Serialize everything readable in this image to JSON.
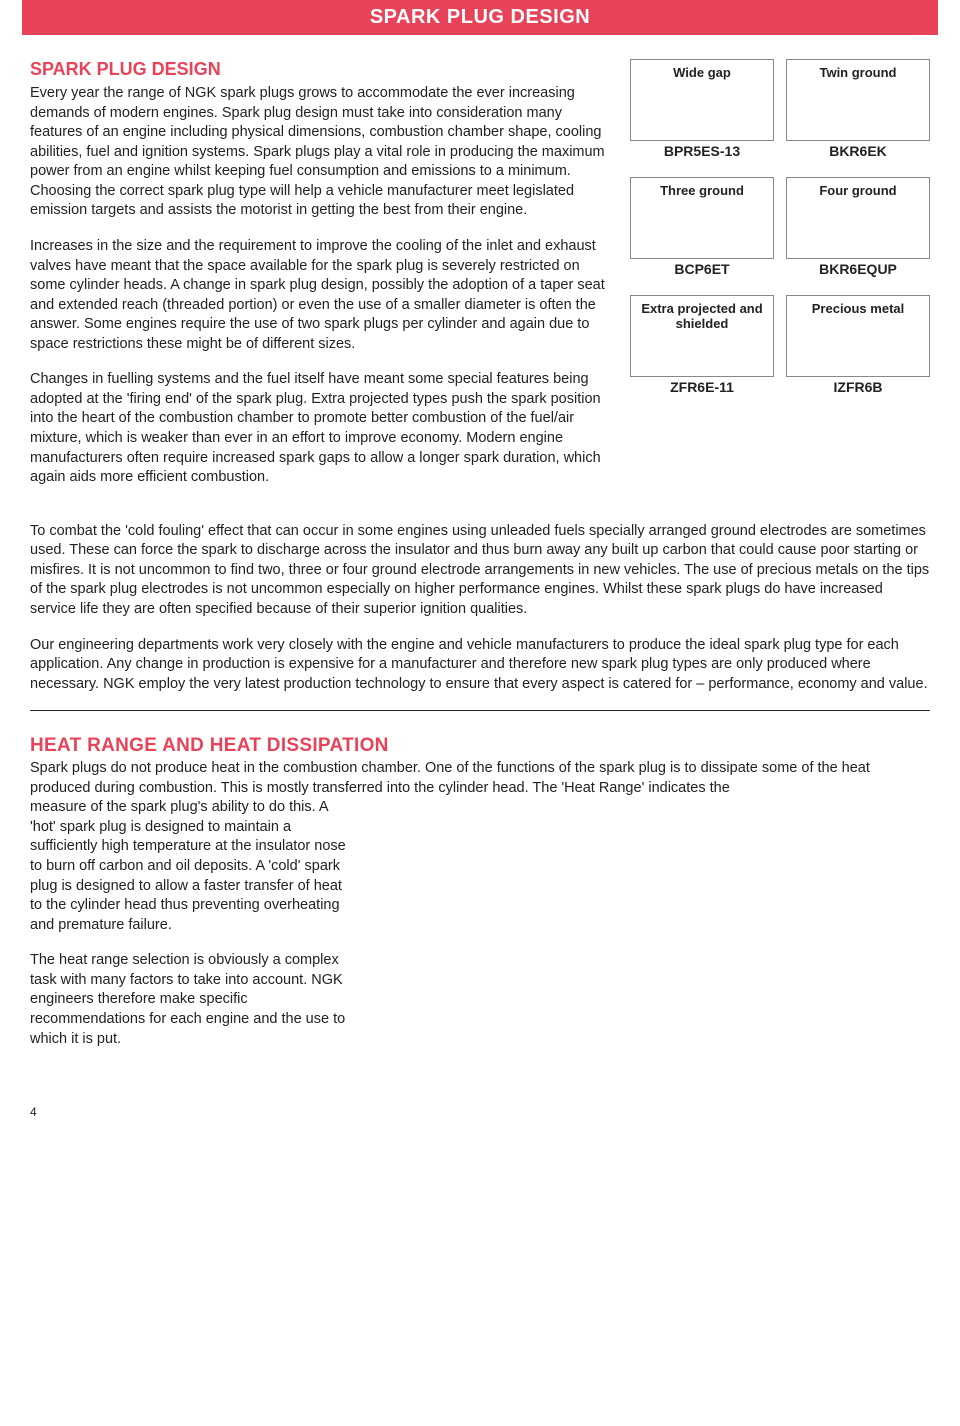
{
  "header": {
    "title": "SPARK PLUG DESIGN"
  },
  "section1": {
    "title": "SPARK PLUG DESIGN",
    "p1": "Every year the range of NGK spark plugs grows to accommodate the ever increasing demands of modern engines. Spark plug design must take into consideration many features of an engine including physical dimensions, combustion chamber shape, cooling abilities, fuel and ignition systems. Spark plugs play a vital role in producing the maximum power from an engine whilst keeping fuel consumption and emissions to a minimum. Choosing the correct spark plug type will help a vehicle manufacturer meet legislated emission targets and assists the motorist in getting the best from their engine.",
    "p2": "Increases in the size and the requirement to improve the cooling of the inlet and exhaust valves have meant that the space available for the spark plug is severely restricted on some cylinder heads. A change in spark plug design, possibly the adoption of a taper seat and extended reach (threaded portion) or even the use of a smaller diameter is often the answer. Some engines require the use of two spark plugs per cylinder and again due to space restrictions these might be of different sizes.",
    "p3": "Changes in fuelling systems and the fuel itself have meant some special features being adopted at the 'firing end' of the spark plug. Extra projected types push the spark position into the heart of the combustion chamber to promote better combustion of the fuel/air mixture, which is weaker than ever in an effort to improve economy. Modern engine manufacturers often require increased spark gaps to allow a longer spark duration, which again aids more efficient combustion.",
    "p4": "To combat the 'cold fouling' effect that can occur in some engines using unleaded fuels specially arranged ground electrodes are sometimes used. These can force the spark to discharge across the insulator and thus burn away any built up carbon that could cause poor starting or misfires. It is not uncommon to find two, three or four ground electrode arrangements in new vehicles. The use of precious metals on the tips of the spark plug electrodes is not uncommon especially on higher performance engines. Whilst these spark plugs do have increased service life they are often specified because of their superior ignition qualities.",
    "p5": "Our engineering departments work very closely with the engine and vehicle manufacturers to produce the ideal spark plug type for each application. Any change in production is expensive for a manufacturer and therefore new spark plug types are only produced where necessary. NGK employ the very latest production technology to ensure that every aspect is catered for – performance, economy and value."
  },
  "types": [
    {
      "title": "Wide gap",
      "code": "BPR5ES-13"
    },
    {
      "title": "Twin ground",
      "code": "BKR6EK"
    },
    {
      "title": "Three ground",
      "code": "BCP6ET"
    },
    {
      "title": "Four ground",
      "code": "BKR6EQUP"
    },
    {
      "title": "Extra projected and shielded",
      "code": "ZFR6E-11"
    },
    {
      "title": "Precious metal",
      "code": "IZFR6B"
    }
  ],
  "section2": {
    "title": "HEAT RANGE AND HEAT DISSIPATION",
    "intro": "Spark plugs do not produce heat in the combustion chamber. One of the functions of the spark plug is to dissipate some of the heat produced during combustion. This is mostly transferred into the cylinder head. The 'Heat Range' indicates the",
    "p1": "measure of the spark plug's ability to do this. A 'hot' spark plug is designed to maintain a sufficiently high temperature at the insulator nose to burn off carbon and oil deposits. A 'cold' spark plug is designed to allow a faster transfer of heat to the cylinder head thus preventing overheating and premature failure.",
    "p2": "The heat range selection is obviously a complex task with many factors to take into account. NGK engineers therefore make specific recommendations for each engine and the use to which it is put."
  },
  "pageNumber": "4"
}
